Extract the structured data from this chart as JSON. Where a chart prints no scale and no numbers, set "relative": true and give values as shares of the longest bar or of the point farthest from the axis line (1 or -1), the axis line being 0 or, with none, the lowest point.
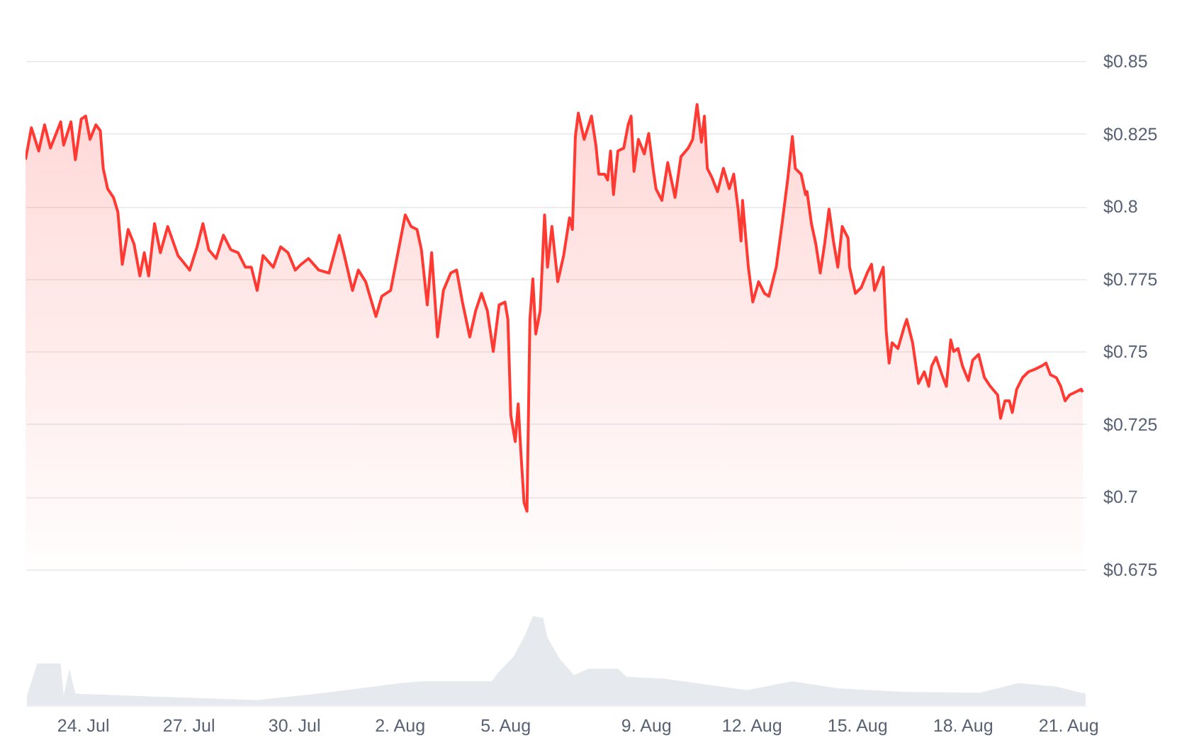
{
  "chart_data": [
    {
      "type": "area",
      "xlim": [
        "--07-22T09:00",
        "--08-21T12:00"
      ],
      "ylim": [
        0.675,
        0.85
      ],
      "yticks": [
        {
          "value": 0.675,
          "label": "$0.675"
        },
        {
          "value": 0.7,
          "label": "$0.7"
        },
        {
          "value": 0.725,
          "label": "$0.725"
        },
        {
          "value": 0.75,
          "label": "$0.75"
        },
        {
          "value": 0.775,
          "label": "$0.775"
        },
        {
          "value": 0.8,
          "label": "$0.8"
        },
        {
          "value": 0.825,
          "label": "$0.825"
        },
        {
          "value": 0.85,
          "label": "$0.85"
        }
      ],
      "grid": "y",
      "tick_labels": "y",
      "x": [
        "--07-22T09:00",
        "--07-22T13:00",
        "--07-22T18:00",
        "--07-22T22:00",
        "--07-23T02:00",
        "--07-23T09:00",
        "--07-23T11:00",
        "--07-23T16:00",
        "--07-23T19:00",
        "--07-23T23:00",
        "--07-24T02:00",
        "--07-24T05:00",
        "--07-24T09:00",
        "--07-24T12:00",
        "--07-24T14:00",
        "--07-24T17:00",
        "--07-24T21:00",
        "--07-25T00:00",
        "--07-25T03:00",
        "--07-25T07:00",
        "--07-25T11:00",
        "--07-25T15:00",
        "--07-25T18:00",
        "--07-25T21:00",
        "--07-26T01:00",
        "--07-26T05:00",
        "--07-26T10:00",
        "--07-26T17:00",
        "--07-27T01:00",
        "--07-27T06:00",
        "--07-27T10:00",
        "--07-27T14:00",
        "--07-27T19:00",
        "--07-28T00:00",
        "--07-28T05:00",
        "--07-28T10:00",
        "--07-28T15:00",
        "--07-28T19:00",
        "--07-28T23:00",
        "--07-29T03:00",
        "--07-29T10:00",
        "--07-29T15:00",
        "--07-29T20:00",
        "--07-30T01:00",
        "--07-30T05:00",
        "--07-30T10:00",
        "--07-30T17:00",
        "--07-31T00:00",
        "--07-31T07:00",
        "--07-31T10:00",
        "--07-31T16:00",
        "--07-31T20:00",
        "--08-01T01:00",
        "--08-01T08:00",
        "--08-01T12:00",
        "--08-01T18:00",
        "--08-01T23:00",
        "--08-02T04:00",
        "--08-02T08:00",
        "--08-02T12:00",
        "--08-02T15:00",
        "--08-02T19:00",
        "--08-02T22:00",
        "--08-03T02:00",
        "--08-03T06:00",
        "--08-03T11:00",
        "--08-03T15:00",
        "--08-03T19:00",
        "--08-04T00:00",
        "--08-04T04:00",
        "--08-04T08:00",
        "--08-04T12:00",
        "--08-04T16:00",
        "--08-04T20:00",
        "--08-05T00:00",
        "--08-05T02:00",
        "--08-05T04:00",
        "--08-05T07:00",
        "--08-05T09:00",
        "--08-05T11:00",
        "--08-05T13:00",
        "--08-05T15:00",
        "--08-05T17:00",
        "--08-05T19:00",
        "--08-05T21:00",
        "--08-06T00:00",
        "--08-06T03:00",
        "--08-06T05:00",
        "--08-06T08:00",
        "--08-06T12:00",
        "--08-06T16:00",
        "--08-06T20:00",
        "--08-06T22:00",
        "--08-07T00:00",
        "--08-07T02:00",
        "--08-07T06:00",
        "--08-07T11:00",
        "--08-07T14:00",
        "--08-07T16:00",
        "--08-07T20:00",
        "--08-07T22:00",
        "--08-08T00:00",
        "--08-08T02:00",
        "--08-08T05:00",
        "--08-08T09:00",
        "--08-08T12:00",
        "--08-08T14:00",
        "--08-08T16:00",
        "--08-08T19:00",
        "--08-08T23:00",
        "--08-09T02:00",
        "--08-09T05:00",
        "--08-09T07:00",
        "--08-09T11:00",
        "--08-09T15:00",
        "--08-09T20:00",
        "--08-10T00:00",
        "--08-10T05:00",
        "--08-10T08:00",
        "--08-10T11:00",
        "--08-10T14:00",
        "--08-10T16:00",
        "--08-10T18:00",
        "--08-10T21:00",
        "--08-11T01:00",
        "--08-11T05:00",
        "--08-11T09:00",
        "--08-11T12:00",
        "--08-11T15:00",
        "--08-11T17:00",
        "--08-11T18:00",
        "--08-11T22:00",
        "--08-12T01:00",
        "--08-12T05:00",
        "--08-12T09:00",
        "--08-12T12:00",
        "--08-12T17:00",
        "--08-12T21:00",
        "--08-13T01:00",
        "--08-13T04:00",
        "--08-13T06:00",
        "--08-13T10:00",
        "--08-13T13:00",
        "--08-13T14:00",
        "--08-13T17:00",
        "--08-13T20:00",
        "--08-13T23:00",
        "--08-14T02:00",
        "--08-14T05:00",
        "--08-14T08:00",
        "--08-14T11:00",
        "--08-14T14:00",
        "--08-14T18:00",
        "--08-14T19:00",
        "--08-14T23:00",
        "--08-15T03:00",
        "--08-15T07:00",
        "--08-15T10:00",
        "--08-15T12:00",
        "--08-15T15:00",
        "--08-15T18:00",
        "--08-15T20:00",
        "--08-15T22:00",
        "--08-16T00:00",
        "--08-16T04:00",
        "--08-16T08:00",
        "--08-16T10:00",
        "--08-16T14:00",
        "--08-16T18:00",
        "--08-16T22:00",
        "--08-17T01:00",
        "--08-17T03:00",
        "--08-17T06:00",
        "--08-17T10:00",
        "--08-17T13:00",
        "--08-17T16:00",
        "--08-17T18:00",
        "--08-17T21:00",
        "--08-18T00:00",
        "--08-18T04:00",
        "--08-18T07:00",
        "--08-18T11:00",
        "--08-18T15:00",
        "--08-18T19:00",
        "--08-19T00:00",
        "--08-19T02:00",
        "--08-19T05:00",
        "--08-19T08:00",
        "--08-19T10:00",
        "--08-19T13:00",
        "--08-19T17:00",
        "--08-19T21:00",
        "--08-20T02:00",
        "--08-20T06:00",
        "--08-20T09:00",
        "--08-20T12:00",
        "--08-20T16:00",
        "--08-20T19:00",
        "--08-20T22:00",
        "--08-21T01:00",
        "--08-21T05:00",
        "--08-21T09:00",
        "--08-21T10:00"
      ],
      "series": [
        {
          "color": "#ff3a33",
          "values": [
            0.816,
            0.827,
            0.819,
            0.828,
            0.82,
            0.829,
            0.821,
            0.829,
            0.816,
            0.83,
            0.831,
            0.823,
            0.828,
            0.826,
            0.813,
            0.806,
            0.803,
            0.798,
            0.78,
            0.792,
            0.787,
            0.776,
            0.784,
            0.776,
            0.794,
            0.784,
            0.793,
            0.783,
            0.778,
            0.786,
            0.794,
            0.785,
            0.782,
            0.79,
            0.785,
            0.784,
            0.779,
            0.779,
            0.771,
            0.783,
            0.779,
            0.786,
            0.784,
            0.778,
            0.78,
            0.782,
            0.778,
            0.777,
            0.79,
            0.784,
            0.771,
            0.778,
            0.774,
            0.762,
            0.769,
            0.771,
            0.784,
            0.797,
            0.793,
            0.792,
            0.785,
            0.766,
            0.784,
            0.755,
            0.771,
            0.777,
            0.778,
            0.767,
            0.755,
            0.764,
            0.77,
            0.764,
            0.75,
            0.766,
            0.767,
            0.761,
            0.728,
            0.719,
            0.732,
            0.714,
            0.698,
            0.695,
            0.761,
            0.775,
            0.756,
            0.764,
            0.797,
            0.779,
            0.793,
            0.774,
            0.783,
            0.796,
            0.792,
            0.824,
            0.832,
            0.823,
            0.831,
            0.821,
            0.811,
            0.811,
            0.809,
            0.819,
            0.804,
            0.819,
            0.82,
            0.828,
            0.831,
            0.812,
            0.823,
            0.818,
            0.825,
            0.813,
            0.806,
            0.802,
            0.815,
            0.803,
            0.817,
            0.82,
            0.823,
            0.835,
            0.822,
            0.831,
            0.813,
            0.81,
            0.805,
            0.813,
            0.806,
            0.811,
            0.799,
            0.788,
            0.802,
            0.779,
            0.767,
            0.774,
            0.77,
            0.769,
            0.779,
            0.794,
            0.81,
            0.824,
            0.813,
            0.811,
            0.804,
            0.805,
            0.794,
            0.787,
            0.777,
            0.787,
            0.799,
            0.788,
            0.779,
            0.793,
            0.789,
            0.779,
            0.77,
            0.772,
            0.777,
            0.78,
            0.771,
            0.775,
            0.779,
            0.757,
            0.746,
            0.753,
            0.751,
            0.758,
            0.761,
            0.753,
            0.739,
            0.743,
            0.738,
            0.745,
            0.748,
            0.742,
            0.738,
            0.754,
            0.75,
            0.751,
            0.745,
            0.74,
            0.747,
            0.749,
            0.741,
            0.738,
            0.735,
            0.727,
            0.733,
            0.733,
            0.729,
            0.737,
            0.741,
            0.743,
            0.744,
            0.745,
            0.746,
            0.742,
            0.741,
            0.738,
            0.733,
            0.735,
            0.736,
            0.737,
            0.736
          ]
        }
      ]
    },
    {
      "type": "area",
      "relative": true,
      "xlim": [
        "--07-22T09:00",
        "--08-21T12:00"
      ],
      "xticks": [
        {
          "value": "--07-24",
          "label": "24. Jul"
        },
        {
          "value": "--07-27",
          "label": "27. Jul"
        },
        {
          "value": "--07-30",
          "label": "30. Jul"
        },
        {
          "value": "--08-02",
          "label": "2. Aug"
        },
        {
          "value": "--08-05",
          "label": "5. Aug"
        },
        {
          "value": "--08-09",
          "label": "9. Aug"
        },
        {
          "value": "--08-12",
          "label": "12. Aug"
        },
        {
          "value": "--08-15",
          "label": "15. Aug"
        },
        {
          "value": "--08-18",
          "label": "18. Aug"
        },
        {
          "value": "--08-21",
          "label": "21. Aug"
        }
      ],
      "tick_labels": "x",
      "x": [
        "--07-22T10:00",
        "--07-22T17:00",
        "--07-23T09:00",
        "--07-23T11:00",
        "--07-23T15:00",
        "--07-23T19:00",
        "--07-25T23:00",
        "--07-28T23:00",
        "--07-30T16:00",
        "--08-02T01:00",
        "--08-02T16:00",
        "--08-04T15:00",
        "--08-04T19:00",
        "--08-05T06:00",
        "--08-05T14:00",
        "--08-05T19:00",
        "--08-06T02:00",
        "--08-06T05:00",
        "--08-06T13:00",
        "--08-06T23:00",
        "--08-07T09:00",
        "--08-08T05:00",
        "--08-08T11:00",
        "--08-09T12:00",
        "--08-11T21:00",
        "--08-13T04:00",
        "--08-14T11:00",
        "--08-16T09:00",
        "--08-18T12:00",
        "--08-19T14:00",
        "--08-20T16:00",
        "--08-21T12:00"
      ],
      "series": [
        {
          "color": "#e6eaef",
          "values": [
            0.11,
            0.47,
            0.47,
            0.11,
            0.41,
            0.13,
            0.1,
            0.06,
            0.13,
            0.25,
            0.27,
            0.27,
            0.36,
            0.55,
            0.8,
            1,
            0.98,
            0.76,
            0.53,
            0.34,
            0.41,
            0.41,
            0.32,
            0.3,
            0.17,
            0.27,
            0.19,
            0.15,
            0.14,
            0.25,
            0.21,
            0.13
          ]
        }
      ]
    }
  ]
}
